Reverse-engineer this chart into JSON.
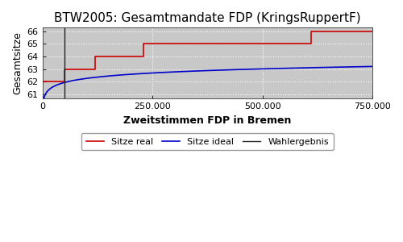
{
  "title": "BTW2005: Gesamtmandate FDP (KringsRuppertF)",
  "xlabel": "Zweitstimmen FDP in Bremen",
  "ylabel": "Gesamtsitze",
  "xlim": [
    0,
    750000
  ],
  "ylim": [
    60.65,
    66.3
  ],
  "yticks": [
    61,
    62,
    63,
    64,
    65,
    66
  ],
  "xticks": [
    0,
    250000,
    500000,
    750000
  ],
  "xtick_labels": [
    "0",
    "250.000",
    "500.000",
    "750.000"
  ],
  "wahlergebnis_x": 50000,
  "sitze_real_x": [
    0,
    50000,
    50000,
    120000,
    120000,
    230000,
    230000,
    610000,
    610000,
    750000
  ],
  "sitze_real_y": [
    62,
    62,
    63,
    63,
    64,
    64,
    65,
    65,
    66,
    66
  ],
  "sitze_ideal_a": 60.68,
  "sitze_ideal_b": 0.47,
  "sitze_ideal_c": 3500,
  "bg_color": "#c8c8c8",
  "line_real_color": "#cc0000",
  "line_ideal_color": "#0000cc",
  "line_wahl_color": "#222222",
  "title_fontsize": 11,
  "axis_label_fontsize": 9,
  "tick_fontsize": 8,
  "legend_fontsize": 8,
  "grid_color": "#ffffff",
  "figure_bg": "#ffffff"
}
